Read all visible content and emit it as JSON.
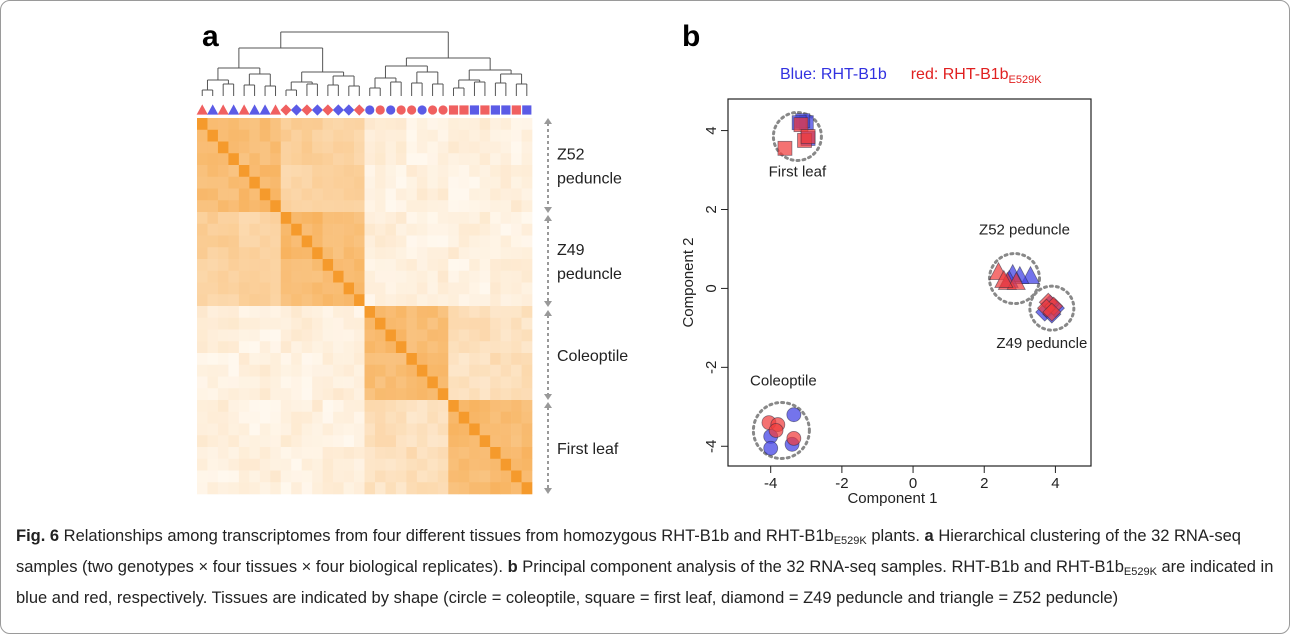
{
  "panels": {
    "a": {
      "label": "a"
    },
    "b": {
      "label": "b"
    }
  },
  "colors": {
    "blue": "#5b5be6",
    "red": "#f06060",
    "orange_dark": "#f59a2c",
    "orange_light": "#fff7ee",
    "dotted": "#888888",
    "arrow": "#999999"
  },
  "heatmap": {
    "n": 32,
    "tip_shapes": [
      "triangle",
      "triangle",
      "triangle",
      "triangle",
      "triangle",
      "triangle",
      "triangle",
      "triangle",
      "diamond",
      "diamond",
      "diamond",
      "diamond",
      "diamond",
      "diamond",
      "diamond",
      "diamond",
      "circle",
      "circle",
      "circle",
      "circle",
      "circle",
      "circle",
      "circle",
      "circle",
      "square",
      "square",
      "square",
      "square",
      "square",
      "square",
      "square",
      "square"
    ],
    "tip_colors": [
      "red",
      "blue",
      "red",
      "blue",
      "red",
      "blue",
      "blue",
      "red",
      "red",
      "blue",
      "red",
      "blue",
      "red",
      "blue",
      "blue",
      "red",
      "blue",
      "red",
      "blue",
      "red",
      "red",
      "blue",
      "red",
      "red",
      "red",
      "red",
      "blue",
      "red",
      "blue",
      "blue",
      "red",
      "blue"
    ],
    "groups": [
      {
        "label": "Z52\npeduncle"
      },
      {
        "label": "Z49\npeduncle"
      },
      {
        "label": "Coleoptile"
      },
      {
        "label": "First leaf"
      }
    ]
  },
  "chart_data": {
    "type": "scatter",
    "title": "",
    "legend": {
      "blue_label": "Blue: RHT-B1b",
      "red_label_main": "red: RHT-B1b",
      "red_label_sub": "E529K",
      "placement": "top"
    },
    "xlabel": "Component 1",
    "ylabel": "Component 2",
    "xlim": [
      -5.2,
      5.0
    ],
    "ylim": [
      -4.5,
      4.8
    ],
    "xticks": [
      -4,
      -2,
      0,
      2,
      4
    ],
    "yticks": [
      4,
      2,
      0,
      -2,
      -4
    ],
    "series": [
      {
        "name": "RHT-B1b",
        "color": "blue",
        "points": [
          {
            "x": -3.0,
            "y": 4.2,
            "shape": "square"
          },
          {
            "x": -3.1,
            "y": 4.25,
            "shape": "square"
          },
          {
            "x": -2.95,
            "y": 3.8,
            "shape": "square"
          },
          {
            "x": -3.2,
            "y": 4.2,
            "shape": "square"
          },
          {
            "x": 3.3,
            "y": 0.3,
            "shape": "triangle"
          },
          {
            "x": 3.0,
            "y": 0.3,
            "shape": "triangle"
          },
          {
            "x": 2.8,
            "y": 0.35,
            "shape": "triangle"
          },
          {
            "x": 2.7,
            "y": 0.2,
            "shape": "triangle"
          },
          {
            "x": 3.7,
            "y": -0.6,
            "shape": "diamond"
          },
          {
            "x": 3.9,
            "y": -0.65,
            "shape": "diamond"
          },
          {
            "x": 4.0,
            "y": -0.5,
            "shape": "diamond"
          },
          {
            "x": 3.85,
            "y": -0.4,
            "shape": "diamond"
          },
          {
            "x": -3.35,
            "y": -3.2,
            "shape": "circle"
          },
          {
            "x": -4.0,
            "y": -3.75,
            "shape": "circle"
          },
          {
            "x": -4.0,
            "y": -4.05,
            "shape": "circle"
          },
          {
            "x": -3.4,
            "y": -3.95,
            "shape": "circle"
          }
        ]
      },
      {
        "name": "RHT-B1bE529K",
        "color": "red",
        "points": [
          {
            "x": -3.6,
            "y": 3.55,
            "shape": "square"
          },
          {
            "x": -3.05,
            "y": 3.75,
            "shape": "square"
          },
          {
            "x": -3.15,
            "y": 4.15,
            "shape": "square"
          },
          {
            "x": -2.95,
            "y": 3.85,
            "shape": "square"
          },
          {
            "x": 2.4,
            "y": 0.4,
            "shape": "triangle"
          },
          {
            "x": 2.65,
            "y": 0.15,
            "shape": "triangle"
          },
          {
            "x": 2.9,
            "y": 0.15,
            "shape": "triangle"
          },
          {
            "x": 2.55,
            "y": 0.2,
            "shape": "triangle"
          },
          {
            "x": 3.8,
            "y": -0.35,
            "shape": "diamond"
          },
          {
            "x": 3.95,
            "y": -0.45,
            "shape": "diamond"
          },
          {
            "x": 3.75,
            "y": -0.5,
            "shape": "diamond"
          },
          {
            "x": 3.9,
            "y": -0.6,
            "shape": "diamond"
          },
          {
            "x": -4.05,
            "y": -3.4,
            "shape": "circle"
          },
          {
            "x": -3.8,
            "y": -3.45,
            "shape": "circle"
          },
          {
            "x": -3.85,
            "y": -3.6,
            "shape": "circle"
          },
          {
            "x": -3.35,
            "y": -3.8,
            "shape": "circle"
          }
        ]
      }
    ],
    "clusters": [
      {
        "label": "First leaf",
        "cx": -3.25,
        "cy": 3.85
      },
      {
        "label": "Z52 peduncle",
        "cx": 2.85,
        "cy": 0.25
      },
      {
        "label": "Z49 peduncle",
        "cx": 3.9,
        "cy": -0.5
      },
      {
        "label": "Coleoptile",
        "cx": -3.7,
        "cy": -3.6
      }
    ]
  },
  "caption": {
    "fig": "Fig. 6",
    "p1": " Relationships among transcriptomes from four different tissues from homozygous RHT-B1b and RHT-B1b",
    "sub1": "E529K",
    "p2": " plants. ",
    "a": "a",
    "p3": " Hierarchical clustering of the 32 RNA-seq samples (two genotypes × four tissues × four biological replicates). ",
    "b": "b",
    "p4": " Principal component analysis of the 32 RNA-seq samples. RHT-B1b and RHT-B1b",
    "sub2": "E529K",
    "p5": " are indicated in blue and red, respectively. Tissues are indicated by shape (circle = coleoptile, square = first leaf, diamond = Z49 peduncle and triangle = Z52 peduncle)"
  }
}
